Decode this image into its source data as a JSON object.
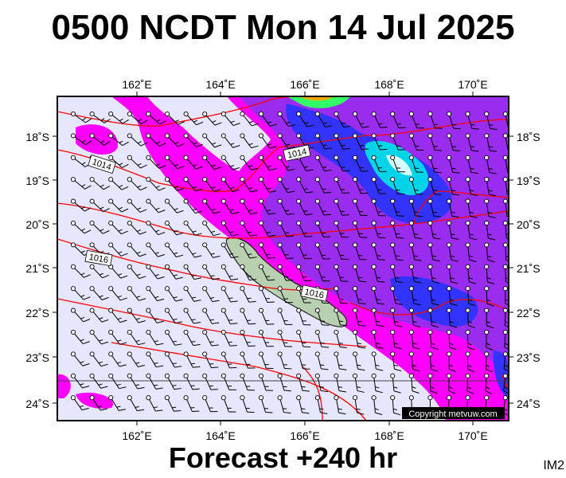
{
  "header": {
    "title": "0500 NCDT Mon 14 Jul 2025"
  },
  "footer": {
    "forecast": "Forecast +240 hr",
    "image_id": "IM2"
  },
  "map": {
    "lon_labels": [
      "162˚E",
      "164˚E",
      "166˚E",
      "168˚E",
      "170˚E"
    ],
    "lat_labels": [
      "18˚S",
      "19˚S",
      "20˚S",
      "21˚S",
      "22˚S",
      "23˚S",
      "24˚S"
    ],
    "isobar_labels": [
      "1014",
      "1014",
      "1016",
      "1016"
    ],
    "copyright": "Copyright metvuw.com",
    "colors": {
      "background": "#e6e6ff",
      "magenta": "#ff00ff",
      "violet": "#9a2cf0",
      "blue": "#3333ff",
      "cyan": "#00d4e8",
      "isobar": "#ff0000"
    }
  }
}
